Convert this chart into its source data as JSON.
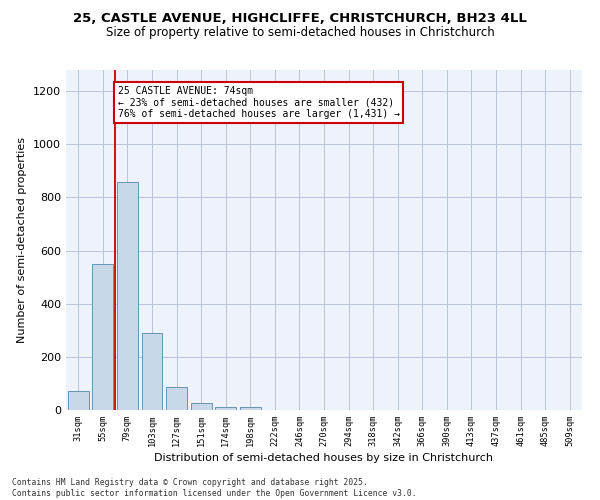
{
  "title_line1": "25, CASTLE AVENUE, HIGHCLIFFE, CHRISTCHURCH, BH23 4LL",
  "title_line2": "Size of property relative to semi-detached houses in Christchurch",
  "xlabel": "Distribution of semi-detached houses by size in Christchurch",
  "ylabel": "Number of semi-detached properties",
  "categories": [
    "31sqm",
    "55sqm",
    "79sqm",
    "103sqm",
    "127sqm",
    "151sqm",
    "174sqm",
    "198sqm",
    "222sqm",
    "246sqm",
    "270sqm",
    "294sqm",
    "318sqm",
    "342sqm",
    "366sqm",
    "390sqm",
    "413sqm",
    "437sqm",
    "461sqm",
    "485sqm",
    "509sqm"
  ],
  "values": [
    70,
    550,
    860,
    290,
    85,
    25,
    10,
    10,
    0,
    0,
    0,
    0,
    0,
    0,
    0,
    0,
    0,
    0,
    0,
    0,
    0
  ],
  "bar_color": "#c8d8e8",
  "bar_edge_color": "#5588aa",
  "vline_x": 1.5,
  "vline_color": "#cc0000",
  "annotation_text": "25 CASTLE AVENUE: 74sqm\n← 23% of semi-detached houses are smaller (432)\n76% of semi-detached houses are larger (1,431) →",
  "annotation_box_color": "#cc0000",
  "ylim": [
    0,
    1280
  ],
  "yticks": [
    0,
    200,
    400,
    600,
    800,
    1000,
    1200
  ],
  "footnote": "Contains HM Land Registry data © Crown copyright and database right 2025.\nContains public sector information licensed under the Open Government Licence v3.0.",
  "bg_color": "#eef2fa",
  "grid_color": "#b0bcd4"
}
